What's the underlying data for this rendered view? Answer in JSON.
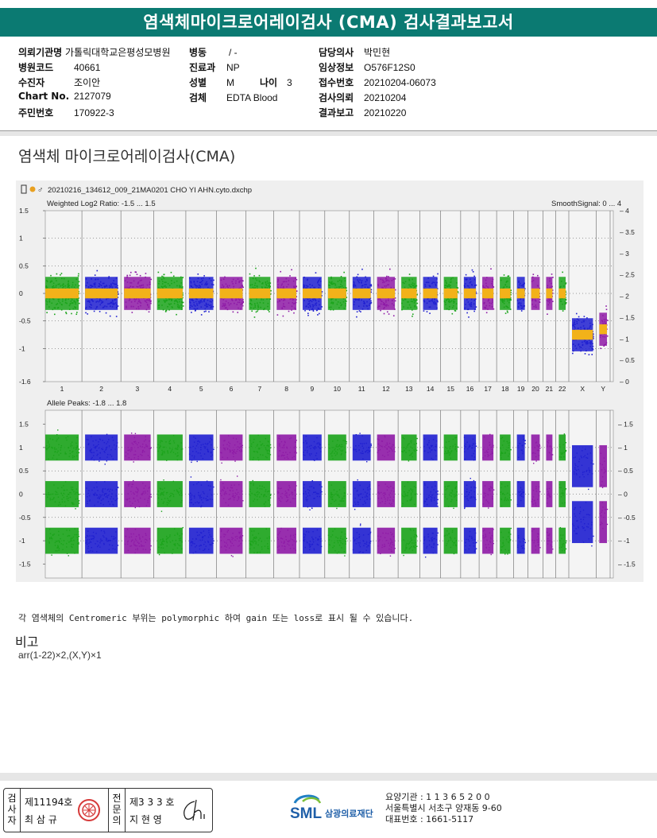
{
  "report_title": "염색체마이크로어레이검사 (CMA) 검사결과보고서",
  "patient_info": {
    "left": [
      {
        "label": "의뢰기관명",
        "value": "가톨릭대학교은평성모병원"
      },
      {
        "label": "병원코드",
        "value": "40661"
      },
      {
        "label": "수진자",
        "value": "조이안"
      },
      {
        "label": "Chart No.",
        "value": "2127079"
      },
      {
        "label": "주민번호",
        "value": "170922-3"
      }
    ],
    "mid": [
      {
        "label": "병동",
        "value": "/ -"
      },
      {
        "label": "진료과",
        "value": "NP"
      },
      {
        "label": "성별",
        "value": "M"
      },
      {
        "label": "검체",
        "value": "EDTA Blood"
      }
    ],
    "age": {
      "label": "나이",
      "value": "3"
    },
    "right": [
      {
        "label": "담당의사",
        "value": "박민현"
      },
      {
        "label": "임상정보",
        "value": "O576F12S0"
      },
      {
        "label": "접수번호",
        "value": "20210204-06073"
      },
      {
        "label": "검사의뢰",
        "value": "20210204"
      },
      {
        "label": "결과보고",
        "value": "20210220"
      }
    ]
  },
  "section_title": "염색체 마이크로어레이검사(CMA)",
  "chart_header": "20210216_134612_009_21MA0201 CHO YI AHN.cyto.dxchp",
  "chart_data": [
    {
      "type": "scatter",
      "title": "Weighted Log2 Ratio: -1.5 ... 1.5",
      "right_axis_title": "SmoothSignal: 0 ... 4",
      "ylim": [
        -1.6,
        1.5
      ],
      "yticks_left": [
        "1.5",
        "1",
        "0.5",
        "0",
        "-0.5",
        "-1",
        "-1.6"
      ],
      "yticks_right": [
        "4",
        "3.5",
        "3",
        "2.5",
        "2",
        "1.5",
        "1",
        "0.5",
        "0"
      ],
      "categories": [
        "1",
        "2",
        "3",
        "4",
        "5",
        "6",
        "7",
        "8",
        "9",
        "10",
        "11",
        "12",
        "13",
        "14",
        "15",
        "16",
        "17",
        "18",
        "19",
        "20",
        "21",
        "22",
        "X",
        "Y"
      ],
      "series": [
        {
          "name": "",
          "values": [
            0,
            0,
            0,
            0,
            0,
            0,
            0,
            0,
            0,
            0,
            0,
            0,
            0,
            0,
            0,
            0,
            0,
            0,
            0,
            0,
            0,
            0,
            -0.75,
            -0.65
          ]
        }
      ],
      "smooth_signal": [
        2,
        2,
        2,
        2,
        2,
        2,
        2,
        2,
        2,
        2,
        2,
        2,
        2,
        2,
        2,
        2,
        2,
        2,
        2,
        2,
        2,
        2,
        1,
        1
      ]
    },
    {
      "type": "scatter",
      "title": "Allele Peaks: -1.8 ... 1.8",
      "ylim": [
        -1.8,
        1.8
      ],
      "yticks_left": [
        "1.5",
        "1",
        "0.5",
        "0",
        "-0.5",
        "-1",
        "-1.5"
      ],
      "yticks_right": [
        "1.5",
        "1",
        "0.5",
        "0",
        "-0.5",
        "-1",
        "-1.5"
      ],
      "categories": [
        "1",
        "2",
        "3",
        "4",
        "5",
        "6",
        "7",
        "8",
        "9",
        "10",
        "11",
        "12",
        "13",
        "14",
        "15",
        "16",
        "17",
        "18",
        "19",
        "20",
        "21",
        "22",
        "X",
        "Y"
      ],
      "series": [
        {
          "name": "",
          "values": [
            1,
            0,
            -1
          ]
        }
      ]
    }
  ],
  "colors": {
    "green": "#1aa31a",
    "blue": "#1f1fd0",
    "purple": "#8e1aa6",
    "orange": "#f2b21a",
    "header": "#0b7a72"
  },
  "note": "각 염색체의 Centromeric 부위는 polymorphic 하여 gain 또는 loss로 표시 될 수 있습니다.",
  "remarks_title": "비고",
  "remarks_text": "arr(1-22)×2,(X,Y)×1",
  "footer": {
    "box1_label": [
      "검",
      "사",
      "자"
    ],
    "box1_no": "제11194호",
    "box1_name": "최 삼 규",
    "box2_label": [
      "전",
      "문",
      "의"
    ],
    "box2_no": "제3 3 3 호",
    "box2_name": "지 현 영",
    "org_logo": "SML",
    "org_name": "삼광의료재단",
    "org_code": "요양기관 : 1 1 3 6 5 2 0 0",
    "org_address": "서울특별시 서초구 양재동 9-60",
    "org_phone": "대표번호 : 1661-5117"
  }
}
